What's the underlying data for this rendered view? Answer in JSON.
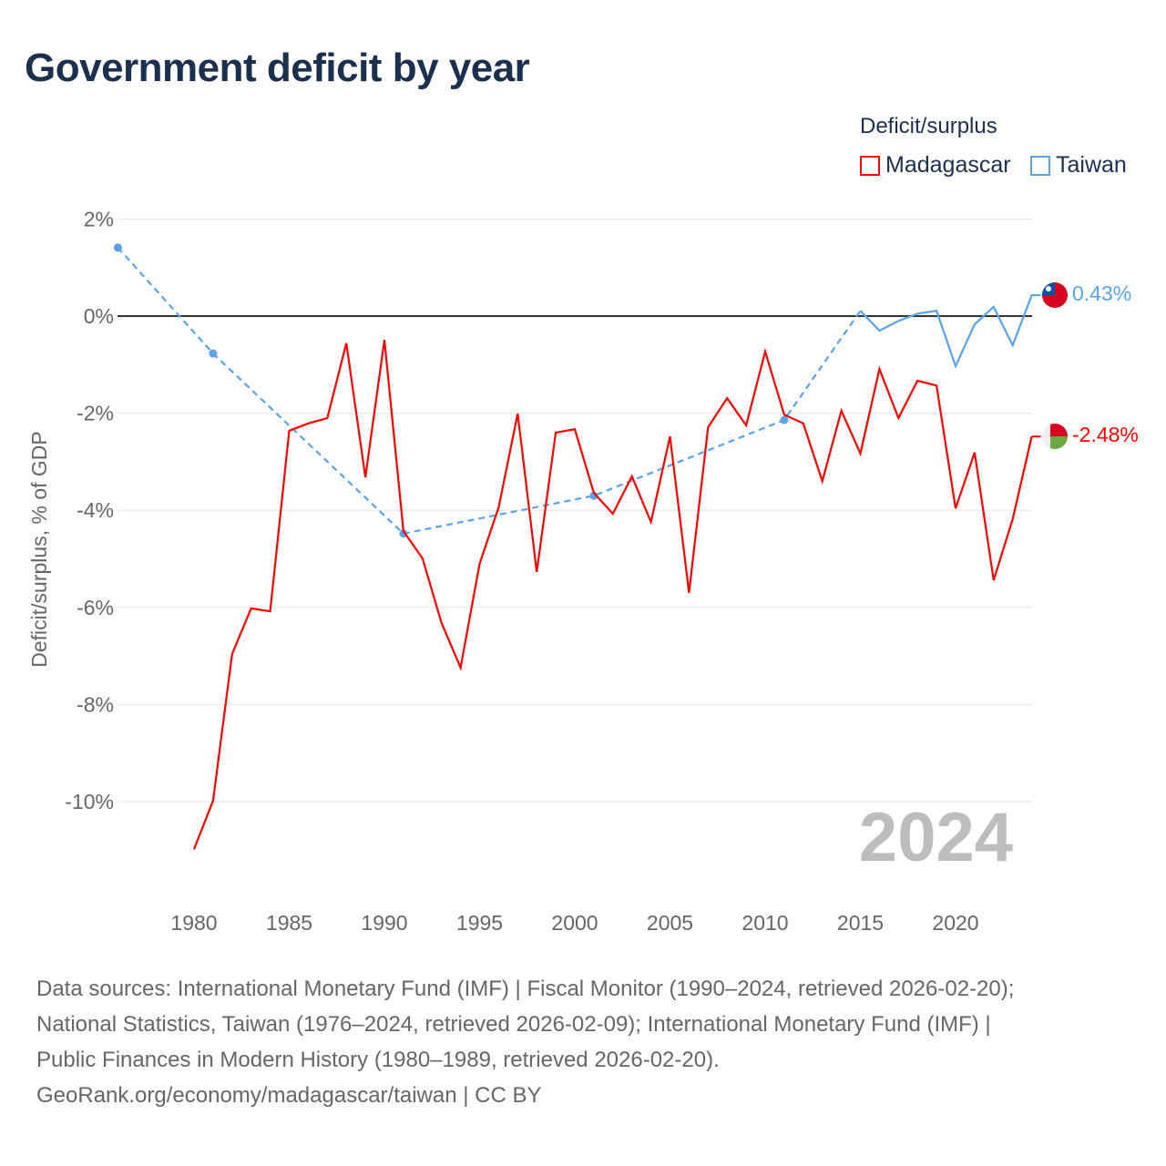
{
  "title": "Government deficit by year",
  "legend": {
    "title": "Deficit/surplus",
    "items": [
      {
        "label": "Madagascar",
        "color": "#ff0000"
      },
      {
        "label": "Taiwan",
        "color": "#5aa3e8"
      }
    ]
  },
  "chart_data": {
    "type": "line",
    "title": "Government deficit by year",
    "xlabel": "",
    "ylabel": "Deficit/surplus, % of GDP",
    "ylim": [
      -12,
      2.5
    ],
    "xlim": [
      1976,
      2024
    ],
    "yticks": [
      2,
      0,
      -2,
      -4,
      -6,
      -8,
      -10
    ],
    "ytick_labels": [
      "2%",
      "0%",
      "-2%",
      "-4%",
      "-6%",
      "-8%",
      "-10%"
    ],
    "xticks": [
      1980,
      1985,
      1990,
      1995,
      2000,
      2005,
      2010,
      2015,
      2020
    ],
    "xtick_labels": [
      "1980",
      "1985",
      "1990",
      "1995",
      "2000",
      "2005",
      "2010",
      "2015",
      "2020"
    ],
    "grid": true,
    "legend_position": "top-right",
    "year_watermark": "2024",
    "series": [
      {
        "name": "Madagascar",
        "color": "#ff0000",
        "end_label": "-2.48%",
        "x": [
          1980,
          1981,
          1982,
          1983,
          1984,
          1985,
          1986,
          1987,
          1988,
          1989,
          1990,
          1991,
          1992,
          1993,
          1994,
          1995,
          1996,
          1997,
          1998,
          1999,
          2000,
          2001,
          2002,
          2003,
          2004,
          2005,
          2006,
          2007,
          2008,
          2009,
          2010,
          2011,
          2012,
          2013,
          2014,
          2015,
          2016,
          2017,
          2018,
          2019,
          2020,
          2021,
          2022,
          2023,
          2024
        ],
        "y": [
          -10.98,
          -9.98,
          -6.96,
          -6.02,
          -6.08,
          -2.36,
          -2.21,
          -2.1,
          -0.56,
          -3.32,
          -0.49,
          -4.43,
          -4.99,
          -6.32,
          -7.24,
          -5.1,
          -3.94,
          -2.01,
          -5.27,
          -2.4,
          -2.33,
          -3.64,
          -4.07,
          -3.3,
          -4.24,
          -2.48,
          -5.7,
          -2.29,
          -1.69,
          -2.25,
          -0.73,
          -2.03,
          -2.21,
          -3.4,
          -1.95,
          -2.83,
          -1.09,
          -2.1,
          -1.33,
          -1.43,
          -3.96,
          -2.81,
          -5.44,
          -4.18,
          -2.48
        ]
      },
      {
        "name": "Taiwan",
        "color": "#5aa3e8",
        "end_label": "0.43%",
        "sparse_x": [
          1976,
          1981,
          1991,
          2001,
          2011,
          2015
        ],
        "sparse_y": [
          1.41,
          -0.77,
          -4.48,
          -3.7,
          -2.14,
          0.11
        ],
        "x": [
          2015,
          2016,
          2017,
          2018,
          2019,
          2020,
          2021,
          2022,
          2023,
          2024
        ],
        "y": [
          0.11,
          -0.3,
          -0.1,
          0.05,
          0.11,
          -1.03,
          -0.17,
          0.19,
          -0.6,
          0.43
        ]
      }
    ]
  },
  "footer": {
    "line1": "Data sources: International Monetary Fund (IMF) | Fiscal Monitor (1990–2024, retrieved 2026-02-20);",
    "line2": "National Statistics, Taiwan (1976–2024, retrieved 2026-02-09); International Monetary Fund (IMF) |",
    "line3": "Public Finances in Modern History (1980–1989, retrieved 2026-02-20).",
    "line4": "GeoRank.org/economy/madagascar/taiwan | CC BY"
  }
}
